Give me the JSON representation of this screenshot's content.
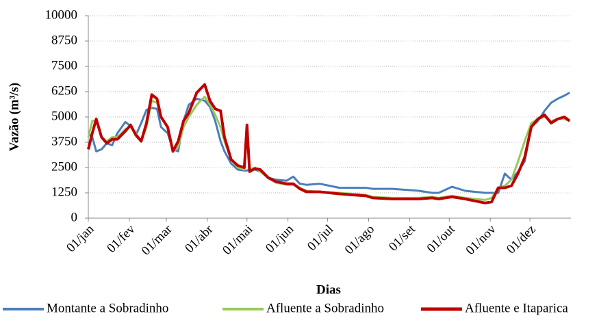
{
  "chart_data": {
    "type": "line",
    "x_label": "Dias",
    "y_label": "Vazão (m³/s)",
    "x": [
      0,
      3,
      6,
      10,
      14,
      18,
      22,
      28,
      32,
      36,
      40,
      44,
      48,
      52,
      55,
      60,
      64,
      68,
      72,
      76,
      82,
      88,
      92,
      96,
      100,
      103,
      108,
      113,
      118,
      120,
      122,
      126,
      130,
      136,
      142,
      150,
      155,
      160,
      165,
      175,
      190,
      200,
      210,
      215,
      230,
      250,
      260,
      265,
      275,
      285,
      300,
      305,
      310,
      315,
      320,
      325,
      330,
      335,
      340,
      345,
      350,
      355,
      360,
      364
    ],
    "xlim": [
      0,
      365
    ],
    "xticks": [
      {
        "value": 0,
        "label": "01/jan"
      },
      {
        "value": 31,
        "label": "01/fev"
      },
      {
        "value": 59,
        "label": "01/mar"
      },
      {
        "value": 90,
        "label": "01/abr"
      },
      {
        "value": 120,
        "label": "01/mai"
      },
      {
        "value": 151,
        "label": "01/jun"
      },
      {
        "value": 181,
        "label": "01/jul"
      },
      {
        "value": 212,
        "label": "01/ago"
      },
      {
        "value": 243,
        "label": "01/set"
      },
      {
        "value": 273,
        "label": "01/out"
      },
      {
        "value": 304,
        "label": "01/nov"
      },
      {
        "value": 334,
        "label": "01/dez"
      }
    ],
    "ylim": [
      0,
      10000
    ],
    "yticks": [
      0,
      1250,
      2500,
      3750,
      5000,
      6250,
      7500,
      8750,
      10000
    ],
    "grid": true,
    "legend": "bottom",
    "series": [
      {
        "name": "Montante a Sobradinho",
        "color": "#4a7ebb",
        "values": [
          4200,
          4000,
          3300,
          3400,
          3700,
          3600,
          4200,
          4750,
          4550,
          4100,
          4700,
          5350,
          5450,
          5400,
          4500,
          4200,
          3400,
          3300,
          4800,
          5600,
          5900,
          5800,
          5500,
          4800,
          3800,
          3300,
          2700,
          2400,
          2350,
          2350,
          2400,
          2400,
          2300,
          2000,
          1900,
          1850,
          2050,
          1700,
          1650,
          1700,
          1500,
          1500,
          1500,
          1450,
          1450,
          1350,
          1250,
          1250,
          1550,
          1350,
          1250,
          1250,
          1250,
          2200,
          1900,
          2300,
          2800,
          4500,
          4800,
          5300,
          5700,
          5900,
          6050,
          6200
        ]
      },
      {
        "name": "Afluente a Sobradinho",
        "color": "#98c95a",
        "values": [
          4000,
          4800,
          4800,
          4000,
          3800,
          4000,
          4000,
          4400,
          4500,
          4200,
          3800,
          4500,
          5800,
          5700,
          5000,
          4500,
          3300,
          3500,
          4500,
          5000,
          5600,
          6000,
          5600,
          5100,
          4500,
          3800,
          2900,
          2500,
          2400,
          4300,
          2400,
          2500,
          2300,
          2000,
          1750,
          1650,
          1650,
          1500,
          1350,
          1300,
          1250,
          1200,
          1150,
          1050,
          1000,
          1000,
          1050,
          1000,
          1100,
          1000,
          900,
          1000,
          1500,
          1600,
          1900,
          2800,
          3800,
          4700,
          4900,
          5000,
          4800,
          4900,
          4900,
          4800
        ]
      },
      {
        "name": "Afluente e Itaparica",
        "color": "#c00000",
        "values": [
          3400,
          4200,
          4900,
          4000,
          3700,
          3900,
          3900,
          4300,
          4600,
          4100,
          3800,
          4700,
          6100,
          5900,
          5000,
          4500,
          3300,
          3800,
          4800,
          5200,
          6200,
          6600,
          5800,
          5400,
          5300,
          4000,
          2900,
          2600,
          2500,
          4600,
          2300,
          2450,
          2400,
          2000,
          1800,
          1700,
          1700,
          1450,
          1300,
          1300,
          1200,
          1150,
          1100,
          1000,
          950,
          950,
          1000,
          950,
          1050,
          950,
          750,
          800,
          1500,
          1500,
          1600,
          2200,
          3000,
          4500,
          4900,
          5100,
          4700,
          4900,
          5000,
          4800
        ]
      }
    ]
  }
}
